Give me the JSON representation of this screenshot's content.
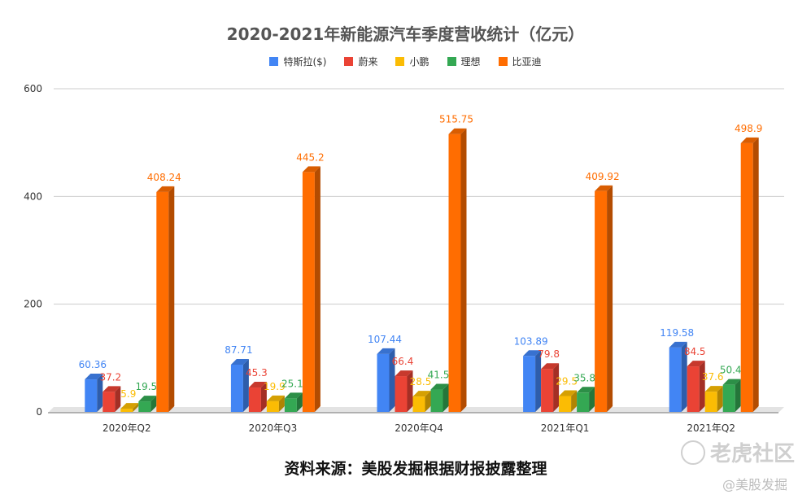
{
  "title": "2020-2021年新能源汽车季度营收统计（亿元）",
  "source": "资料来源：美股发掘根据财报披露整理",
  "watermark": {
    "logo": "老虎社区",
    "handle": "@美股发掘"
  },
  "chart_data": {
    "type": "bar",
    "title": "2020-2021年新能源汽车季度营收统计（亿元）",
    "categories": [
      "2020年Q2",
      "2020年Q3",
      "2020年Q4",
      "2021年Q1",
      "2021年Q2"
    ],
    "series": [
      {
        "name": "特斯拉($)",
        "color": "#4285f4",
        "values": [
          60.36,
          87.71,
          107.44,
          103.89,
          119.58
        ],
        "labels": [
          "60.36",
          "87.71",
          "107.44",
          "103.89",
          "119.58"
        ]
      },
      {
        "name": "蔚来",
        "color": "#ea4335",
        "values": [
          37.2,
          45.3,
          66.4,
          79.8,
          84.5
        ],
        "labels": [
          "37.2",
          "45.3",
          "66.4",
          "79.8",
          "84.5"
        ]
      },
      {
        "name": "小鹏",
        "color": "#fbbc04",
        "values": [
          5.9,
          19.9,
          28.5,
          29.5,
          37.6
        ],
        "labels": [
          "5.9",
          "19.9",
          "28.5",
          "29.5",
          "37.6"
        ]
      },
      {
        "name": "理想",
        "color": "#34a853",
        "values": [
          19.5,
          25.1,
          41.5,
          35.8,
          50.4
        ],
        "labels": [
          "19.5",
          "25.1",
          "41.5",
          "35.8",
          "50.4"
        ]
      },
      {
        "name": "比亚迪",
        "color": "#ff6d01",
        "values": [
          408.24,
          445.2,
          515.75,
          409.92,
          498.9
        ],
        "labels": [
          "408.24",
          "445.2",
          "515.75",
          "409.92",
          "498.9"
        ]
      }
    ],
    "y_ticks": [
      0,
      200,
      400,
      600
    ],
    "y_tick_labels": [
      "0",
      "200",
      "400",
      "600"
    ],
    "ylim": [
      0,
      600
    ],
    "grid": true,
    "legend": "top-center",
    "style": "3d-bar"
  }
}
